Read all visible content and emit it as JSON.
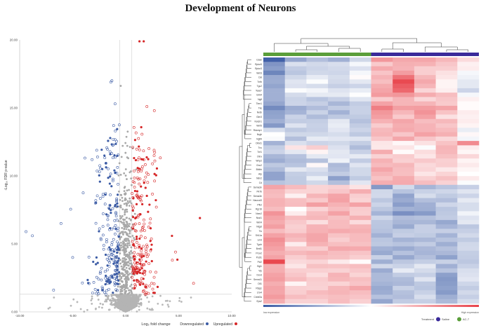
{
  "figure": {
    "title": "Development of Neurons"
  },
  "chart_data": [
    {
      "type": "scatter",
      "subtype": "volcano",
      "title": "",
      "xlabel": "Log₂ fold change",
      "ylabel": "-Log₁₀ FDR p-value",
      "xlim": [
        -10,
        10
      ],
      "ylim": [
        0,
        20
      ],
      "xticks": [
        "-10.00",
        "-5.00",
        "0.00",
        "5.00",
        "10.00"
      ],
      "yticks": [
        "0.00",
        "5.00",
        "10.00",
        "15.00",
        "20.00"
      ],
      "fc_threshold": 0.58,
      "fdr_threshold": 1.3,
      "legend": [
        {
          "label": "Downregulated",
          "color": "#3b5ba5"
        },
        {
          "label": "Upregulated",
          "color": "#d62728"
        }
      ],
      "highlight_points": [
        {
          "x": 1.3,
          "y": 19.9,
          "group": "up"
        },
        {
          "x": 1.7,
          "y": 19.9,
          "group": "up"
        },
        {
          "x": 7.0,
          "y": 6.9,
          "group": "up"
        },
        {
          "x": -9.4,
          "y": 5.9,
          "group": "down"
        },
        {
          "x": -8.8,
          "y": 5.6,
          "group": "down"
        },
        {
          "x": -6.1,
          "y": 6.5,
          "group": "down"
        },
        {
          "x": -5.0,
          "y": 4.0,
          "group": "down"
        },
        {
          "x": -6.8,
          "y": 1.6,
          "group": "down"
        },
        {
          "x": -1.3,
          "y": 17.0,
          "group": "down"
        },
        {
          "x": -1.4,
          "y": 16.9,
          "group": "down"
        },
        {
          "x": -1.0,
          "y": 15.3,
          "group": "down"
        },
        {
          "x": 2.0,
          "y": 15.1,
          "group": "up"
        },
        {
          "x": 2.7,
          "y": 14.8,
          "group": "up"
        },
        {
          "x": 4.4,
          "y": 3.8,
          "group": "up"
        },
        {
          "x": 4.7,
          "y": 4.4,
          "group": "up"
        },
        {
          "x": 6.4,
          "y": 2.1,
          "group": "up"
        }
      ]
    },
    {
      "type": "heatmap",
      "columns": 10,
      "column_groups": [
        {
          "name": "AC-7",
          "count": 5,
          "color": "#5a9e3a"
        },
        {
          "name": "Saline",
          "count": 5,
          "color": "#3a2a9a"
        }
      ],
      "rows": [
        "Cdan",
        "Rptor5",
        "Rptor3",
        "Wnt3",
        "Dsl",
        "Tnfb",
        "Tgc2",
        "Tead7",
        "Gmi4",
        "Ngfl",
        "Tlrm1",
        "Tks",
        "Nrdb",
        "Glm3",
        "Notch1",
        "Wnt5",
        "Rdcmp1",
        "Nrgb",
        "Ngfl4",
        "Otnd1",
        "Tnc",
        "Tnf1",
        "Otnx",
        "Wnp2",
        "Gnc2",
        "Bhlhb",
        "Atp",
        "Ntm2",
        "Cd",
        "Sema3n",
        "Pk7b",
        "Sema3e",
        "Neurod3",
        "Pfk2",
        "Rgr16",
        "Nnm2",
        "Nscl1",
        "Wnt4",
        "Ntgst",
        "Tlc",
        "Sh11a",
        "Lmd",
        "Tgub",
        "Bmil1",
        "Prox2",
        "Pcdl1",
        "Pcl2",
        "Bgl1",
        "Vip",
        "Dcx3",
        "Sema11",
        "Dll1",
        "Rbpj1",
        "Lhx4",
        "Cntnf2a",
        "Eps2"
      ],
      "values": [
        [
          -0.97,
          -0.54,
          -0.39,
          -0.48,
          -0.24,
          0.55,
          0.46,
          0.47,
          0.38,
          0.19
        ],
        [
          -0.65,
          -0.19,
          -0.23,
          -0.2,
          -0.05,
          0.28,
          0.42,
          0.41,
          0.3,
          0.08
        ],
        [
          -0.59,
          -0.31,
          -0.26,
          -0.23,
          -0.18,
          0.45,
          0.4,
          0.26,
          0.26,
          0.1
        ],
        [
          -0.74,
          -0.35,
          -0.24,
          -0.25,
          -0.05,
          0.31,
          0.52,
          0.26,
          0.16,
          -0.05
        ],
        [
          -0.51,
          -0.24,
          -0.12,
          -0.21,
          0.02,
          0.4,
          0.75,
          0.38,
          0.13,
          -0.08
        ],
        [
          -0.5,
          -0.16,
          -0.02,
          -0.23,
          -0.14,
          0.34,
          0.96,
          0.46,
          0.06,
          -0.14
        ],
        [
          -0.55,
          -0.18,
          -0.21,
          -0.29,
          -0.26,
          0.44,
          0.86,
          0.39,
          0.06,
          -0.14
        ],
        [
          -0.48,
          -0.02,
          -0.06,
          -0.17,
          -0.11,
          0.48,
          0.8,
          0.22,
          0.09,
          -0.26
        ],
        [
          -0.48,
          -0.22,
          -0.13,
          -0.13,
          -0.01,
          0.53,
          0.55,
          0.44,
          0.35,
          -0.05
        ],
        [
          -0.48,
          -0.27,
          -0.36,
          -0.29,
          -0.16,
          0.27,
          0.39,
          0.21,
          0.3,
          0.08
        ],
        [
          -0.54,
          -0.26,
          -0.29,
          -0.44,
          -0.31,
          0.49,
          0.39,
          0.39,
          0.28,
          0.02
        ],
        [
          -0.71,
          -0.5,
          -0.4,
          -0.31,
          -0.28,
          0.68,
          0.51,
          0.52,
          0.48,
          0.02
        ],
        [
          -0.57,
          -0.46,
          -0.27,
          -0.47,
          -0.28,
          0.55,
          0.38,
          0.57,
          0.32,
          0.1
        ],
        [
          -0.55,
          -0.27,
          -0.41,
          -0.33,
          -0.32,
          0.51,
          0.28,
          0.5,
          0.16,
          0.08
        ],
        [
          -0.48,
          -0.31,
          -0.3,
          -0.14,
          -0.38,
          0.41,
          0.47,
          0.35,
          0.37,
          0.1
        ],
        [
          -0.62,
          -0.17,
          -0.28,
          -0.11,
          -0.31,
          0.27,
          0.43,
          0.4,
          0.3,
          0.06
        ],
        [
          -0.21,
          -0.33,
          -0.29,
          -0.15,
          -0.26,
          0.37,
          0.45,
          0.4,
          0.36,
          -0.11
        ],
        [
          0.0,
          -0.24,
          -0.24,
          -0.21,
          -0.33,
          0.39,
          0.3,
          0.49,
          0.42,
          0.04
        ],
        [
          -0.03,
          -0.39,
          -0.12,
          -0.15,
          -0.16,
          0.3,
          0.47,
          0.3,
          0.21,
          -0.06
        ],
        [
          -0.47,
          -0.19,
          -0.26,
          -0.24,
          -0.3,
          0.13,
          0.04,
          0.16,
          0.32,
          0.62
        ],
        [
          -0.3,
          0.15,
          0.26,
          -0.18,
          -0.41,
          0.12,
          0.14,
          -0.02,
          0.39,
          0.1
        ],
        [
          -0.26,
          -0.14,
          0.06,
          -0.14,
          -0.28,
          0.44,
          0.02,
          0.18,
          0.38,
          0.05
        ],
        [
          -0.44,
          -0.37,
          -0.14,
          -0.15,
          -0.13,
          0.24,
          0.27,
          0.13,
          0.33,
          0.21
        ],
        [
          -0.5,
          -0.41,
          -0.38,
          -0.08,
          -0.31,
          0.41,
          0.25,
          0.29,
          0.25,
          0.06
        ],
        [
          -0.33,
          -0.36,
          0.04,
          -0.42,
          -0.16,
          0.36,
          0.38,
          0.2,
          0.26,
          0.11
        ],
        [
          -0.41,
          -0.14,
          -0.19,
          -0.39,
          -0.24,
          0.47,
          0.35,
          0.22,
          0.12,
          0.05
        ],
        [
          -0.56,
          -0.3,
          -0.25,
          -0.31,
          -0.24,
          0.39,
          0.34,
          0.14,
          0.23,
          0.0
        ],
        [
          -0.56,
          -0.32,
          -0.1,
          -0.58,
          -0.32,
          0.32,
          0.44,
          0.25,
          0.33,
          0.11
        ],
        [
          -0.36,
          -0.32,
          -0.24,
          -0.39,
          -0.15,
          0.43,
          0.45,
          0.35,
          0.24,
          -0.02
        ],
        [
          0.48,
          0.36,
          0.23,
          0.25,
          0.15,
          -0.62,
          -0.22,
          -0.45,
          -0.36,
          -0.29
        ],
        [
          0.37,
          0.23,
          0.23,
          0.3,
          0.43,
          -0.24,
          -0.36,
          -0.28,
          -0.25,
          -0.16
        ],
        [
          0.35,
          0.08,
          0.39,
          0.48,
          0.26,
          -0.23,
          -0.56,
          -0.21,
          -0.32,
          -0.26
        ],
        [
          0.41,
          0.34,
          0.28,
          0.5,
          0.23,
          -0.34,
          -0.51,
          -0.39,
          -0.4,
          -0.13
        ],
        [
          0.41,
          0.35,
          0.51,
          0.41,
          0.49,
          -0.26,
          -0.59,
          -0.48,
          -0.25,
          -0.21
        ],
        [
          0.35,
          0.0,
          0.22,
          0.35,
          0.27,
          -0.34,
          -0.47,
          -0.49,
          -0.35,
          -0.21
        ],
        [
          0.57,
          0.1,
          0.35,
          0.49,
          0.26,
          -0.46,
          -0.68,
          -0.61,
          -0.33,
          -0.07
        ],
        [
          0.48,
          0.35,
          0.38,
          0.33,
          0.42,
          -0.25,
          -0.4,
          -0.38,
          -0.31,
          -0.17
        ],
        [
          0.44,
          0.29,
          0.17,
          0.36,
          0.19,
          -0.34,
          -0.44,
          -0.44,
          -0.53,
          -0.14
        ],
        [
          0.51,
          0.25,
          0.4,
          0.36,
          0.39,
          -0.35,
          -0.52,
          -0.29,
          -0.45,
          -0.34
        ],
        [
          0.35,
          0.27,
          0.41,
          0.45,
          0.42,
          -0.37,
          -0.32,
          -0.29,
          -0.29,
          -0.29
        ],
        [
          0.49,
          0.4,
          0.47,
          0.32,
          0.36,
          -0.47,
          -0.29,
          -0.32,
          -0.46,
          -0.23
        ],
        [
          0.59,
          0.35,
          0.47,
          0.26,
          0.36,
          -0.35,
          -0.46,
          -0.43,
          -0.36,
          -0.32
        ],
        [
          0.54,
          0.1,
          0.41,
          0.34,
          0.33,
          -0.33,
          -0.36,
          -0.31,
          -0.49,
          -0.24
        ],
        [
          0.49,
          0.28,
          0.26,
          0.46,
          0.45,
          -0.47,
          -0.51,
          -0.43,
          -0.38,
          -0.23
        ],
        [
          0.43,
          0.37,
          0.41,
          0.35,
          0.31,
          -0.52,
          -0.37,
          -0.45,
          -0.43,
          -0.3
        ],
        [
          0.49,
          0.26,
          0.35,
          0.33,
          0.26,
          -0.28,
          -0.53,
          -0.39,
          -0.57,
          -0.31
        ],
        [
          0.97,
          0.2,
          0.22,
          0.11,
          0.02,
          -0.49,
          -0.34,
          -0.3,
          -0.28,
          -0.34
        ],
        [
          0.42,
          0.13,
          0.33,
          0.32,
          0.35,
          -0.23,
          -0.27,
          -0.14,
          -0.48,
          -0.28
        ],
        [
          0.43,
          0.26,
          0.25,
          0.24,
          0.29,
          -0.51,
          -0.12,
          -0.22,
          -0.36,
          -0.2
        ],
        [
          0.49,
          0.3,
          0.18,
          0.4,
          0.23,
          -0.42,
          -0.31,
          -0.29,
          -0.58,
          -0.18
        ],
        [
          0.52,
          0.36,
          0.27,
          0.38,
          0.34,
          -0.42,
          -0.41,
          -0.16,
          -0.62,
          -0.15
        ],
        [
          0.43,
          0.06,
          0.25,
          0.23,
          0.31,
          -0.46,
          -0.43,
          -0.33,
          -0.6,
          -0.25
        ],
        [
          0.48,
          0.25,
          0.24,
          0.38,
          0.47,
          -0.52,
          -0.28,
          -0.35,
          -0.57,
          -0.31
        ],
        [
          0.47,
          0.26,
          0.36,
          0.39,
          0.35,
          -0.5,
          -0.38,
          -0.28,
          -0.61,
          -0.23
        ],
        [
          0.53,
          0.35,
          0.31,
          0.34,
          0.31,
          -0.37,
          -0.4,
          -0.2,
          -0.49,
          -0.29
        ],
        [
          0.43,
          0.24,
          0.24,
          0.35,
          0.25,
          -0.54,
          -0.31,
          -0.29,
          -0.42,
          -0.21
        ]
      ],
      "color_scale": {
        "low": "#3b5ba5",
        "mid": "#ffffff",
        "high": "#e8424a",
        "range": [
          -1,
          1
        ]
      },
      "color_legend_labels": [
        "low expression",
        "High expression"
      ],
      "treatment_legend": {
        "title": "Treatment",
        "items": [
          {
            "label": "Saline",
            "color": "#3a2a9a"
          },
          {
            "label": "AC-7",
            "color": "#5a9e3a"
          }
        ]
      }
    }
  ]
}
